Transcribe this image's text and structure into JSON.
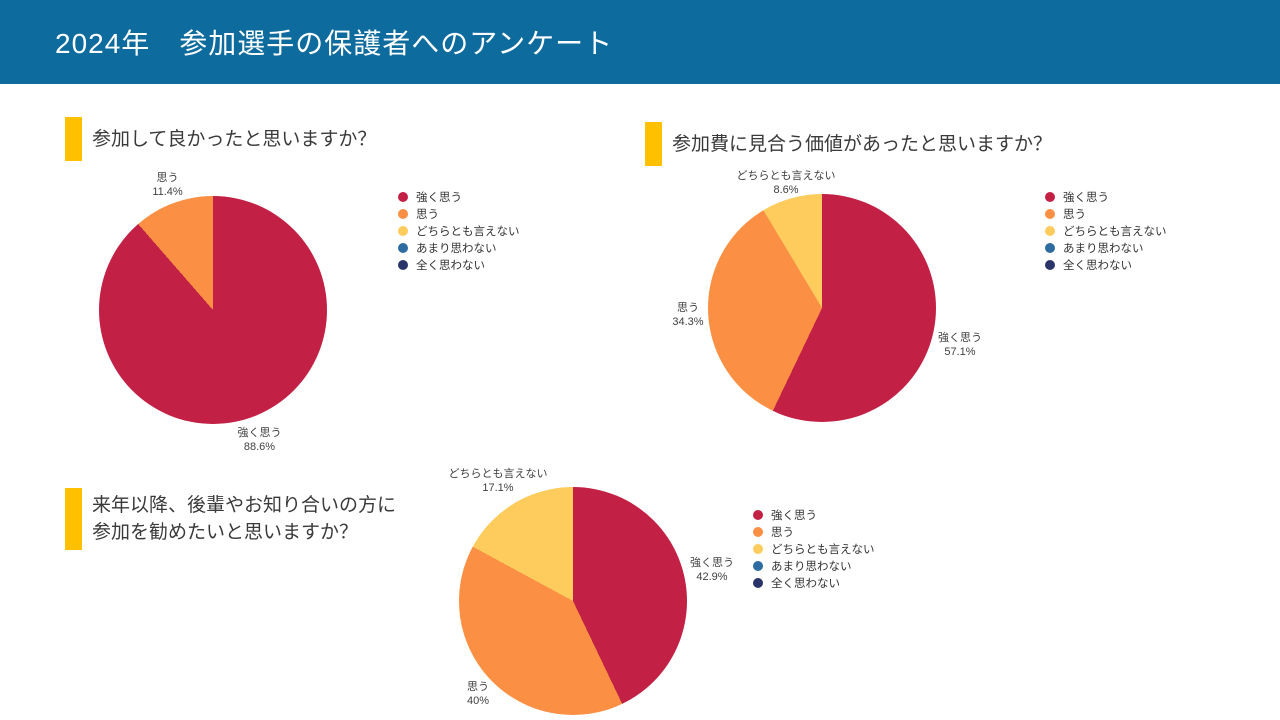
{
  "header": {
    "title": "2024年　参加選手の保護者へのアンケート",
    "bg_color": "#0D6B9E",
    "text_color": "#FFFFFF"
  },
  "accent": {
    "question_marker_color": "#FFC000",
    "question_text_color": "#3A3A3A"
  },
  "chart_data": [
    {
      "type": "pie",
      "title": "参加して良かったと思いますか？",
      "title_lines": [
        "参加して良かったと思いますか？"
      ],
      "categories": [
        "強く思う",
        "思う",
        "どちらとも言えない",
        "あまり思わない",
        "全く思わない"
      ],
      "values": [
        88.6,
        11.4,
        0,
        0,
        0
      ],
      "colors": [
        "#C22045",
        "#FB9044",
        "#FDCC5C",
        "#2C6CA0",
        "#2B3468"
      ],
      "legend_position": "right",
      "callouts": [
        {
          "name": "思う",
          "pct": "11.4%"
        },
        {
          "name": "強く思う",
          "pct": "88.6%"
        }
      ]
    },
    {
      "type": "pie",
      "title": "参加費に見合う価値があったと思いますか？",
      "title_lines": [
        "参加費に見合う価値があったと思いますか？"
      ],
      "categories": [
        "強く思う",
        "思う",
        "どちらとも言えない",
        "あまり思わない",
        "全く思わない"
      ],
      "values": [
        57.1,
        34.3,
        8.6,
        0,
        0
      ],
      "colors": [
        "#C22045",
        "#FB9044",
        "#FDCC5C",
        "#2C6CA0",
        "#2B3468"
      ],
      "legend_position": "right",
      "callouts": [
        {
          "name": "どちらとも言えない",
          "pct": "8.6%"
        },
        {
          "name": "思う",
          "pct": "34.3%"
        },
        {
          "name": "強く思う",
          "pct": "57.1%"
        }
      ]
    },
    {
      "type": "pie",
      "title": "来年以降、後輩やお知り合いの方に参加を勧めたいと思いますか？",
      "title_lines": [
        "来年以降、後輩やお知り合いの方に",
        "参加を勧めたいと思いますか？"
      ],
      "categories": [
        "強く思う",
        "思う",
        "どちらとも言えない",
        "あまり思わない",
        "全く思わない"
      ],
      "values": [
        42.9,
        40,
        17.1,
        0,
        0
      ],
      "colors": [
        "#C22045",
        "#FB9044",
        "#FDCC5C",
        "#2C6CA0",
        "#2B3468"
      ],
      "legend_position": "right",
      "callouts": [
        {
          "name": "どちらとも言えない",
          "pct": "17.1%"
        },
        {
          "name": "強く思う",
          "pct": "42.9%"
        },
        {
          "name": "思う",
          "pct": "40%"
        }
      ]
    }
  ]
}
